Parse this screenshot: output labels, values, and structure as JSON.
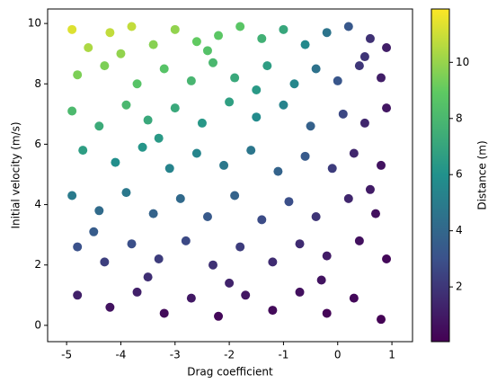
{
  "chart_data": {
    "type": "scatter",
    "xlabel": "Drag coefficient",
    "ylabel": "Initial velocity (m/s)",
    "colorbar_label": "Distance (m)",
    "colormap": "viridis",
    "xlim": [
      -5.35,
      1.38
    ],
    "ylim": [
      -0.54,
      10.48
    ],
    "clim": [
      0.05,
      11.9
    ],
    "xticks": [
      -5,
      -4,
      -3,
      -2,
      -1,
      0,
      1
    ],
    "yticks": [
      0,
      2,
      4,
      6,
      8,
      10
    ],
    "cticks": [
      2,
      4,
      6,
      8,
      10
    ],
    "x": [
      -4.9,
      -4.6,
      -4.2,
      -3.8,
      -3.4,
      -3.0,
      -2.6,
      -2.2,
      -1.8,
      -1.4,
      -1.0,
      -0.6,
      -0.2,
      0.2,
      0.6,
      0.9,
      -4.8,
      -4.3,
      -3.7,
      -3.2,
      -2.7,
      -2.3,
      -1.9,
      -1.3,
      -0.8,
      -0.4,
      0.0,
      0.4,
      0.8,
      -4.9,
      -4.4,
      -3.9,
      -3.5,
      -3.0,
      -2.5,
      -2.0,
      -1.5,
      -1.0,
      -0.5,
      0.1,
      0.5,
      0.9,
      -4.7,
      -4.1,
      -3.6,
      -3.1,
      -2.6,
      -2.1,
      -1.6,
      -1.1,
      -0.6,
      -0.1,
      0.3,
      0.8,
      -4.9,
      -4.4,
      -3.9,
      -3.4,
      -2.9,
      -2.4,
      -1.9,
      -1.4,
      -0.9,
      -0.4,
      0.2,
      0.7,
      -4.8,
      -4.3,
      -3.8,
      -3.3,
      -2.8,
      -2.3,
      -1.8,
      -1.2,
      -0.7,
      -0.2,
      0.4,
      0.9,
      -4.8,
      -4.2,
      -3.7,
      -3.2,
      -2.7,
      -2.2,
      -1.7,
      -1.2,
      -0.7,
      -0.2,
      0.3,
      0.8,
      -4.5,
      -3.5,
      -2.0,
      -0.3,
      0.6,
      -1.5,
      -4.0,
      -2.4,
      0.5,
      -3.3
    ],
    "y": [
      9.8,
      9.2,
      9.7,
      9.9,
      9.3,
      9.8,
      9.4,
      9.6,
      9.9,
      9.5,
      9.8,
      9.3,
      9.7,
      9.9,
      9.5,
      9.2,
      8.3,
      8.6,
      8.0,
      8.5,
      8.1,
      8.7,
      8.2,
      8.6,
      8.0,
      8.5,
      8.1,
      8.6,
      8.2,
      7.1,
      6.6,
      7.3,
      6.8,
      7.2,
      6.7,
      7.4,
      6.9,
      7.3,
      6.6,
      7.0,
      6.7,
      7.2,
      5.8,
      5.4,
      5.9,
      5.2,
      5.7,
      5.3,
      5.8,
      5.1,
      5.6,
      5.2,
      5.7,
      5.3,
      4.3,
      3.8,
      4.4,
      3.7,
      4.2,
      3.6,
      4.3,
      3.5,
      4.1,
      3.6,
      4.2,
      3.7,
      2.6,
      2.1,
      2.7,
      2.2,
      2.8,
      2.0,
      2.6,
      2.1,
      2.7,
      2.3,
      2.8,
      2.2,
      1.0,
      0.6,
      1.1,
      0.4,
      0.9,
      0.3,
      1.0,
      0.5,
      1.1,
      0.4,
      0.9,
      0.2,
      3.1,
      1.6,
      1.4,
      1.5,
      4.5,
      7.8,
      9.0,
      9.1,
      8.9,
      6.2
    ],
    "c": [
      11.3,
      10.4,
      10.8,
      10.8,
      9.7,
      9.9,
      9.0,
      8.8,
      8.7,
      7.6,
      7.1,
      5.6,
      4.6,
      3.3,
      1.8,
      1.1,
      9.5,
      9.5,
      8.6,
      8.6,
      7.9,
      8.0,
      7.2,
      6.6,
      5.5,
      4.5,
      3.2,
      2.0,
      1.1,
      8.1,
      7.3,
      8.0,
      7.2,
      7.2,
      6.3,
      6.7,
      5.7,
      5.3,
      3.7,
      2.6,
      1.4,
      0.8,
      6.6,
      5.9,
      6.2,
      5.3,
      5.4,
      4.8,
      4.7,
      3.8,
      3.4,
      2.2,
      1.4,
      0.7,
      4.9,
      4.2,
      4.8,
      3.8,
      4.1,
      3.4,
      3.8,
      2.8,
      2.9,
      1.9,
      1.4,
      0.6,
      3.0,
      2.3,
      2.9,
      2.2,
      2.7,
      1.8,
      2.2,
      1.6,
      1.6,
      1.0,
      0.6,
      0.3,
      1.2,
      0.7,
      1.2,
      0.4,
      0.9,
      0.3,
      0.8,
      0.4,
      0.6,
      0.2,
      0.3,
      0.1,
      3.5,
      1.7,
      1.3,
      0.7,
      1.0,
      6.4,
      9.9,
      8.5,
      1.9,
      6.4
    ]
  }
}
